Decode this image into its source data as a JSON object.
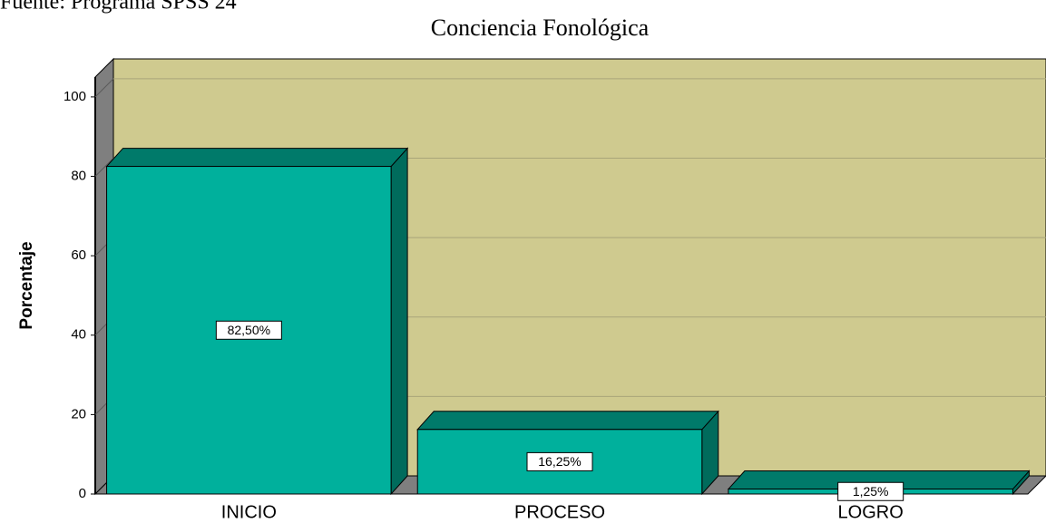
{
  "source": "Fuente: Programa SPSS 24",
  "chart_data": {
    "type": "bar3d",
    "title": "Conciencia Fonológica",
    "y_label": "Porcentaje",
    "categories": [
      "INICIO",
      "PROCESO",
      "LOGRO"
    ],
    "values": [
      82.5,
      16.25,
      1.25
    ],
    "value_labels": [
      "82,50%",
      "16,25%",
      "1,25%"
    ],
    "color": "#00b09c",
    "ylim": [
      0,
      105
    ],
    "yticks": [
      0,
      20,
      40,
      60,
      80,
      100
    ],
    "grid": true
  }
}
